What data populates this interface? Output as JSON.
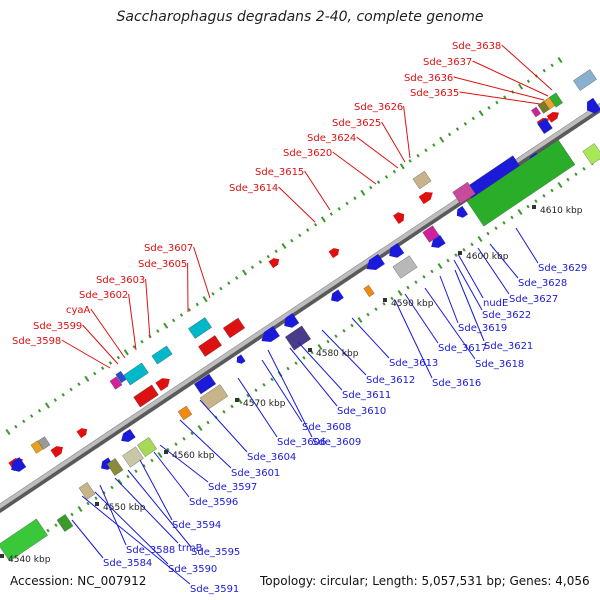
{
  "title": "Saccharophagus degradans 2-40, complete genome",
  "accession": "Accession: NC_007912",
  "summary": "Topology: circular; Length: 5,057,531 bp; Genes: 4,056",
  "colors": {
    "red": "#dd1111",
    "blue": "#1a1ad8",
    "backbone": "#8a8a8a"
  },
  "scale_labels": [
    "4540 kbp",
    "4550 kbp",
    "4560 kbp",
    "4570 kbp",
    "4580 kbp",
    "4590 kbp",
    "4600 kbp",
    "4610 kbp"
  ],
  "upper_labels": [
    "Sde_3598",
    "Sde_3599",
    "cyaA",
    "Sde_3602",
    "Sde_3603",
    "Sde_3605",
    "Sde_3607",
    "Sde_3614",
    "Sde_3615",
    "Sde_3620",
    "Sde_3624",
    "Sde_3625",
    "Sde_3626",
    "Sde_3635",
    "Sde_3636",
    "Sde_3637",
    "Sde_3638"
  ],
  "lower_labels": [
    "Sde_3591",
    "Sde_3590",
    "Sde_3584",
    "Sde_3588",
    "trmB",
    "Sde_3595",
    "Sde_3594",
    "Sde_3596",
    "Sde_3597",
    "Sde_3601",
    "Sde_3604",
    "Sde_3606",
    "Sde_3608",
    "Sde_3609",
    "Sde_3610",
    "Sde_3611",
    "Sde_3612",
    "Sde_3613",
    "Sde_3616",
    "Sde_3617",
    "Sde_3618",
    "Sde_3619",
    "Sde_3621",
    "Sde_3622",
    "nudE",
    "Sde_3627",
    "Sde_3628",
    "Sde_3629"
  ]
}
